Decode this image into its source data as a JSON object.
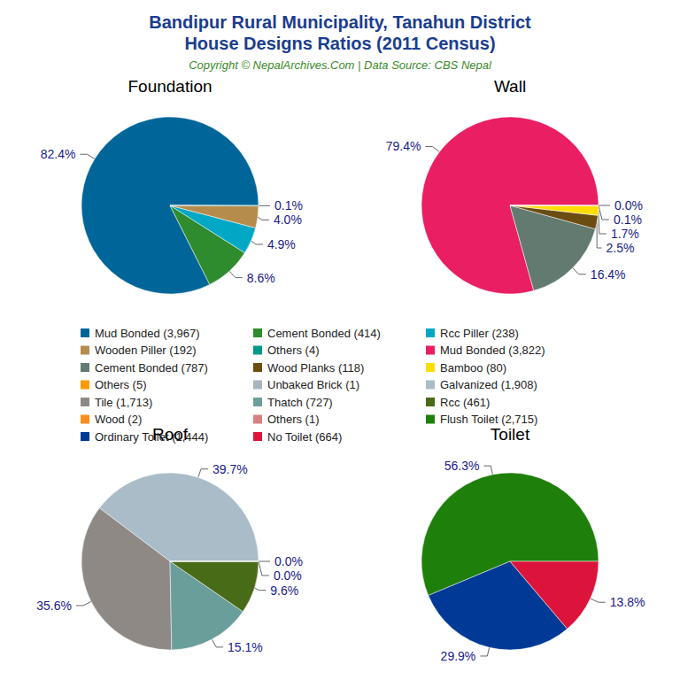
{
  "title": "Bandipur Rural Municipality, Tanahun District\nHouse Designs Ratios (2011 Census)",
  "subtitle": "Copyright © NepalArchives.Com | Data Source: CBS Nepal",
  "chart_data": [
    {
      "type": "pie",
      "title": "Foundation",
      "categories": [
        "Mud Bonded (3,967)",
        "Cement Bonded (414)",
        "Rcc Piller (238)",
        "Wooden Piller (192)",
        "Others (4)"
      ],
      "values": [
        82.4,
        8.6,
        4.9,
        4.0,
        0.1
      ],
      "value_labels": [
        "82.4%",
        "8.6%",
        "4.9%",
        "4.0%",
        "0.1%"
      ],
      "colors": [
        "#006699",
        "#2e8b2e",
        "#00a8c6",
        "#b68c4c",
        "#009988"
      ],
      "data_labels": true,
      "legend": "center"
    },
    {
      "type": "pie",
      "title": "Wall",
      "categories": [
        "Mud Bonded (3,822)",
        "Cement Bonded (787)",
        "Wood Planks (118)",
        "Bamboo (80)",
        "Others (5)",
        "Unbaked Brick (1)"
      ],
      "values": [
        79.4,
        16.4,
        2.5,
        1.7,
        0.1,
        0.0
      ],
      "value_labels": [
        "79.4%",
        "16.4%",
        "2.5%",
        "1.7%",
        "0.1%",
        "0.0%"
      ],
      "colors": [
        "#e91e63",
        "#627a6f",
        "#6b4c11",
        "#ffdd00",
        "#ff9900",
        "#a9b5bd"
      ],
      "data_labels": true,
      "legend": "center"
    },
    {
      "type": "pie",
      "title": "Roof",
      "categories": [
        "Galvanized (1,908)",
        "Tile (1,713)",
        "Thatch (727)",
        "Rcc (461)",
        "Wood (2)",
        "Others (1)"
      ],
      "values": [
        39.7,
        35.6,
        15.1,
        9.6,
        0.0,
        0.0
      ],
      "value_labels": [
        "39.7%",
        "35.6%",
        "15.1%",
        "9.6%",
        "0.0%",
        "0.0%"
      ],
      "colors": [
        "#a9bcc8",
        "#8f8985",
        "#6a9e9a",
        "#486b18",
        "#ff8c1a",
        "#d98080"
      ],
      "data_labels": true,
      "legend": "center"
    },
    {
      "type": "pie",
      "title": "Toilet",
      "categories": [
        "Flush Toilet (2,715)",
        "Ordinary Toilet (1,444)",
        "No Toilet (664)"
      ],
      "values": [
        56.3,
        29.9,
        13.8
      ],
      "value_labels": [
        "56.3%",
        "29.9%",
        "13.8%"
      ],
      "colors": [
        "#1f7f0b",
        "#003a96",
        "#dc143c"
      ],
      "data_labels": true,
      "legend": "center"
    }
  ]
}
